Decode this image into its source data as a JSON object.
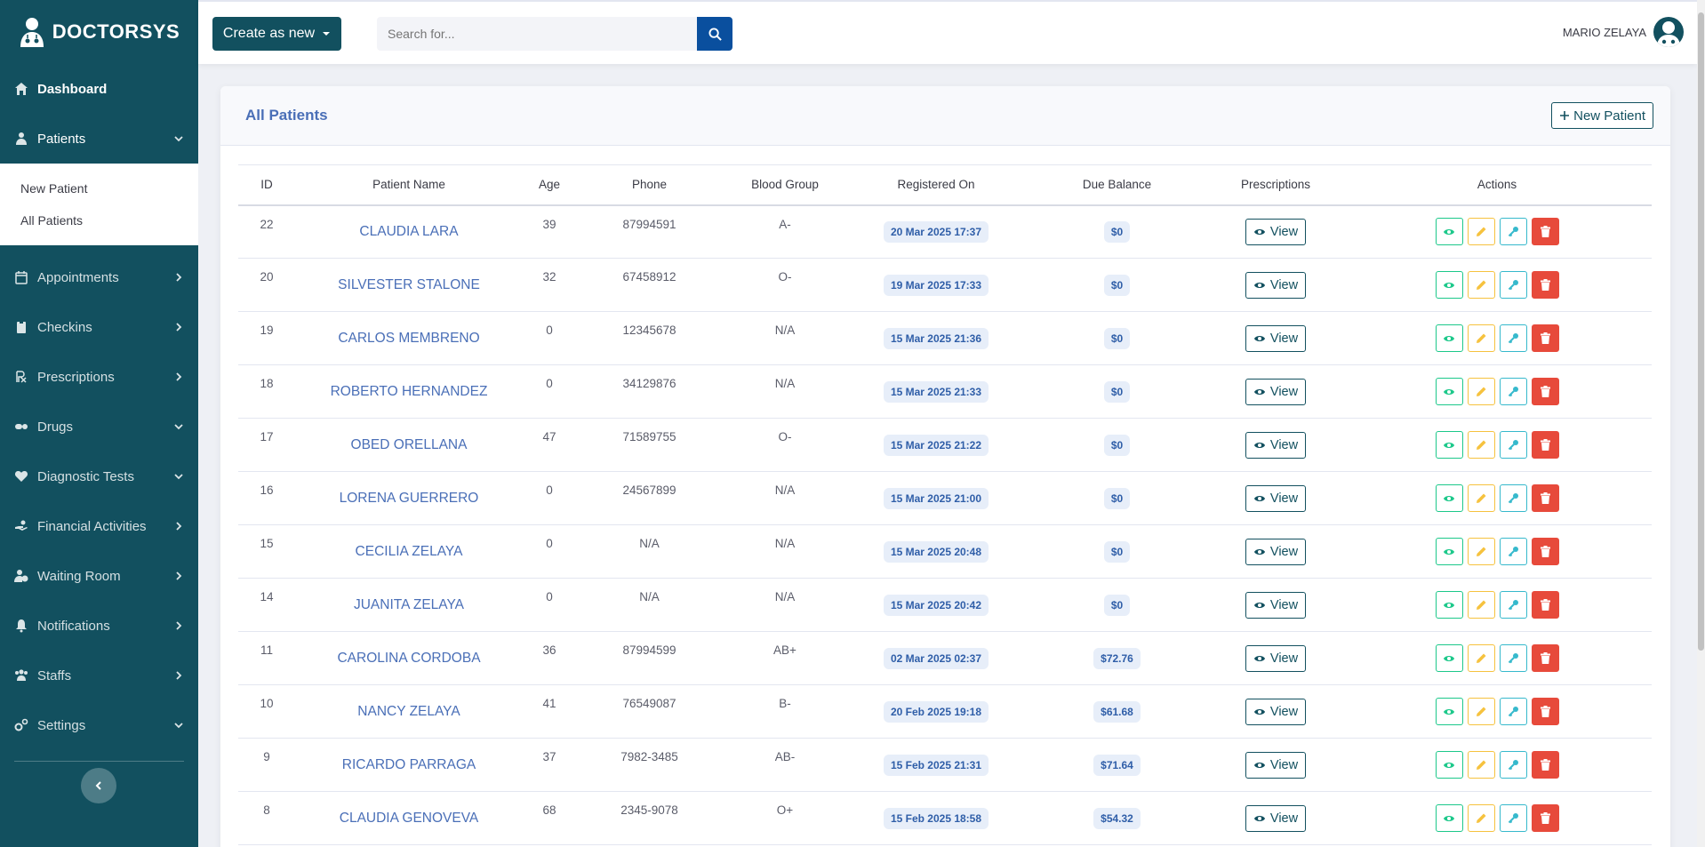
{
  "brand": {
    "name": "DOCTORSYS"
  },
  "sidebar": {
    "items": [
      {
        "label": "Dashboard",
        "icon": "home-icon",
        "chevron": "none"
      },
      {
        "label": "Patients",
        "icon": "user-injured-icon",
        "chevron": "down"
      },
      {
        "label": "Appointments",
        "icon": "calendar-icon",
        "chevron": "right"
      },
      {
        "label": "Checkins",
        "icon": "clipboard-icon",
        "chevron": "right"
      },
      {
        "label": "Prescriptions",
        "icon": "prescription-icon",
        "chevron": "right"
      },
      {
        "label": "Drugs",
        "icon": "pills-icon",
        "chevron": "down"
      },
      {
        "label": "Diagnostic Tests",
        "icon": "heartbeat-icon",
        "chevron": "down"
      },
      {
        "label": "Financial Activities",
        "icon": "hand-money-icon",
        "chevron": "right"
      },
      {
        "label": "Waiting Room",
        "icon": "user-clock-icon",
        "chevron": "right"
      },
      {
        "label": "Notifications",
        "icon": "bell-icon",
        "chevron": "right"
      },
      {
        "label": "Staffs",
        "icon": "users-icon",
        "chevron": "right"
      },
      {
        "label": "Settings",
        "icon": "cogs-icon",
        "chevron": "down"
      }
    ],
    "patients_submenu": [
      "New Patient",
      "All Patients"
    ]
  },
  "topbar": {
    "create_label": "Create as new",
    "search_placeholder": "Search for...",
    "user_name": "MARIO ZELAYA"
  },
  "card": {
    "title": "All Patients",
    "new_patient_label": "New Patient"
  },
  "table": {
    "headers": [
      "ID",
      "Patient Name",
      "Age",
      "Phone",
      "Blood Group",
      "Registered On",
      "Due Balance",
      "Prescriptions",
      "Actions"
    ],
    "view_label": "View",
    "rows": [
      {
        "id": "22",
        "name": "CLAUDIA LARA",
        "age": "39",
        "phone": "87994591",
        "blood": "A-",
        "registered": "20 Mar 2025 17:37",
        "due": "$0"
      },
      {
        "id": "20",
        "name": "SILVESTER STALONE",
        "age": "32",
        "phone": "67458912",
        "blood": "O-",
        "registered": "19 Mar 2025 17:33",
        "due": "$0"
      },
      {
        "id": "19",
        "name": "CARLOS MEMBRENO",
        "age": "0",
        "phone": "12345678",
        "blood": "N/A",
        "registered": "15 Mar 2025 21:36",
        "due": "$0"
      },
      {
        "id": "18",
        "name": "ROBERTO HERNANDEZ",
        "age": "0",
        "phone": "34129876",
        "blood": "N/A",
        "registered": "15 Mar 2025 21:33",
        "due": "$0"
      },
      {
        "id": "17",
        "name": "OBED ORELLANA",
        "age": "47",
        "phone": "71589755",
        "blood": "O-",
        "registered": "15 Mar 2025 21:22",
        "due": "$0"
      },
      {
        "id": "16",
        "name": "LORENA GUERRERO",
        "age": "0",
        "phone": "24567899",
        "blood": "N/A",
        "registered": "15 Mar 2025 21:00",
        "due": "$0"
      },
      {
        "id": "15",
        "name": "CECILIA ZELAYA",
        "age": "0",
        "phone": "N/A",
        "blood": "N/A",
        "registered": "15 Mar 2025 20:48",
        "due": "$0"
      },
      {
        "id": "14",
        "name": "JUANITA ZELAYA",
        "age": "0",
        "phone": "N/A",
        "blood": "N/A",
        "registered": "15 Mar 2025 20:42",
        "due": "$0"
      },
      {
        "id": "11",
        "name": "CAROLINA CORDOBA",
        "age": "36",
        "phone": "87994599",
        "blood": "AB+",
        "registered": "02 Mar 2025 02:37",
        "due": "$72.76"
      },
      {
        "id": "10",
        "name": "NANCY ZELAYA",
        "age": "41",
        "phone": "76549087",
        "blood": "B-",
        "registered": "20 Feb 2025 19:18",
        "due": "$61.68"
      },
      {
        "id": "9",
        "name": "RICARDO PARRAGA",
        "age": "37",
        "phone": "7982-3485",
        "blood": "AB-",
        "registered": "15 Feb 2025 21:31",
        "due": "$71.64"
      },
      {
        "id": "8",
        "name": "CLAUDIA GENOVEVA",
        "age": "68",
        "phone": "2345-9078",
        "blood": "O+",
        "registered": "15 Feb 2025 18:58",
        "due": "$54.32"
      }
    ]
  },
  "colors": {
    "sidebar": "#12505f",
    "accent_blue": "#4a6fb7",
    "view": "#1cc88a",
    "edit": "#f6c23e",
    "key": "#36b9cc",
    "delete": "#e74a3b"
  }
}
